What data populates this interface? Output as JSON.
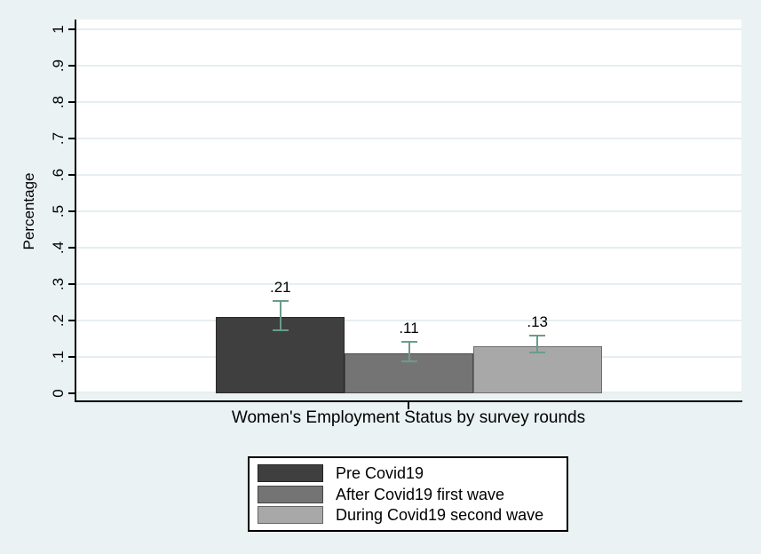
{
  "figure": {
    "background": "#eaf2f3",
    "plot_background": "#ffffff",
    "gridline_color": "#e6eef0",
    "axis_color": "#000000",
    "text_color": "#000000"
  },
  "chart_data": {
    "type": "bar",
    "title": "",
    "xlabel": "Women's Employment Status by survey rounds",
    "ylabel": "Percentage",
    "ylim": [
      0,
      1
    ],
    "grid": true,
    "yticks": {
      "values": [
        0,
        0.1,
        0.2,
        0.3,
        0.4,
        0.5,
        0.6,
        0.7,
        0.8,
        0.9,
        1
      ],
      "labels": [
        "0",
        ".1",
        ".2",
        ".3",
        ".4",
        ".5",
        ".6",
        ".7",
        ".8",
        ".9",
        "1"
      ]
    },
    "categories": [
      "Pre Covid19",
      "After Covid19 first wave",
      "During Covid19 second wave"
    ],
    "values": [
      0.21,
      0.11,
      0.13
    ],
    "value_labels": [
      ".21",
      ".11",
      ".13"
    ],
    "bar_colors": [
      "#3f3f3f",
      "#747474",
      "#a8a8a8"
    ],
    "error_bars": {
      "color": "#6a9c8c",
      "intervals": [
        [
          0.17,
          0.256
        ],
        [
          0.085,
          0.144
        ],
        [
          0.11,
          0.161
        ]
      ]
    },
    "legend": {
      "position": "bottom-center",
      "entries": [
        {
          "label": "Pre Covid19",
          "color": "#3f3f3f"
        },
        {
          "label": "After Covid19 first wave",
          "color": "#747474"
        },
        {
          "label": "During Covid19 second wave",
          "color": "#a8a8a8"
        }
      ]
    }
  }
}
